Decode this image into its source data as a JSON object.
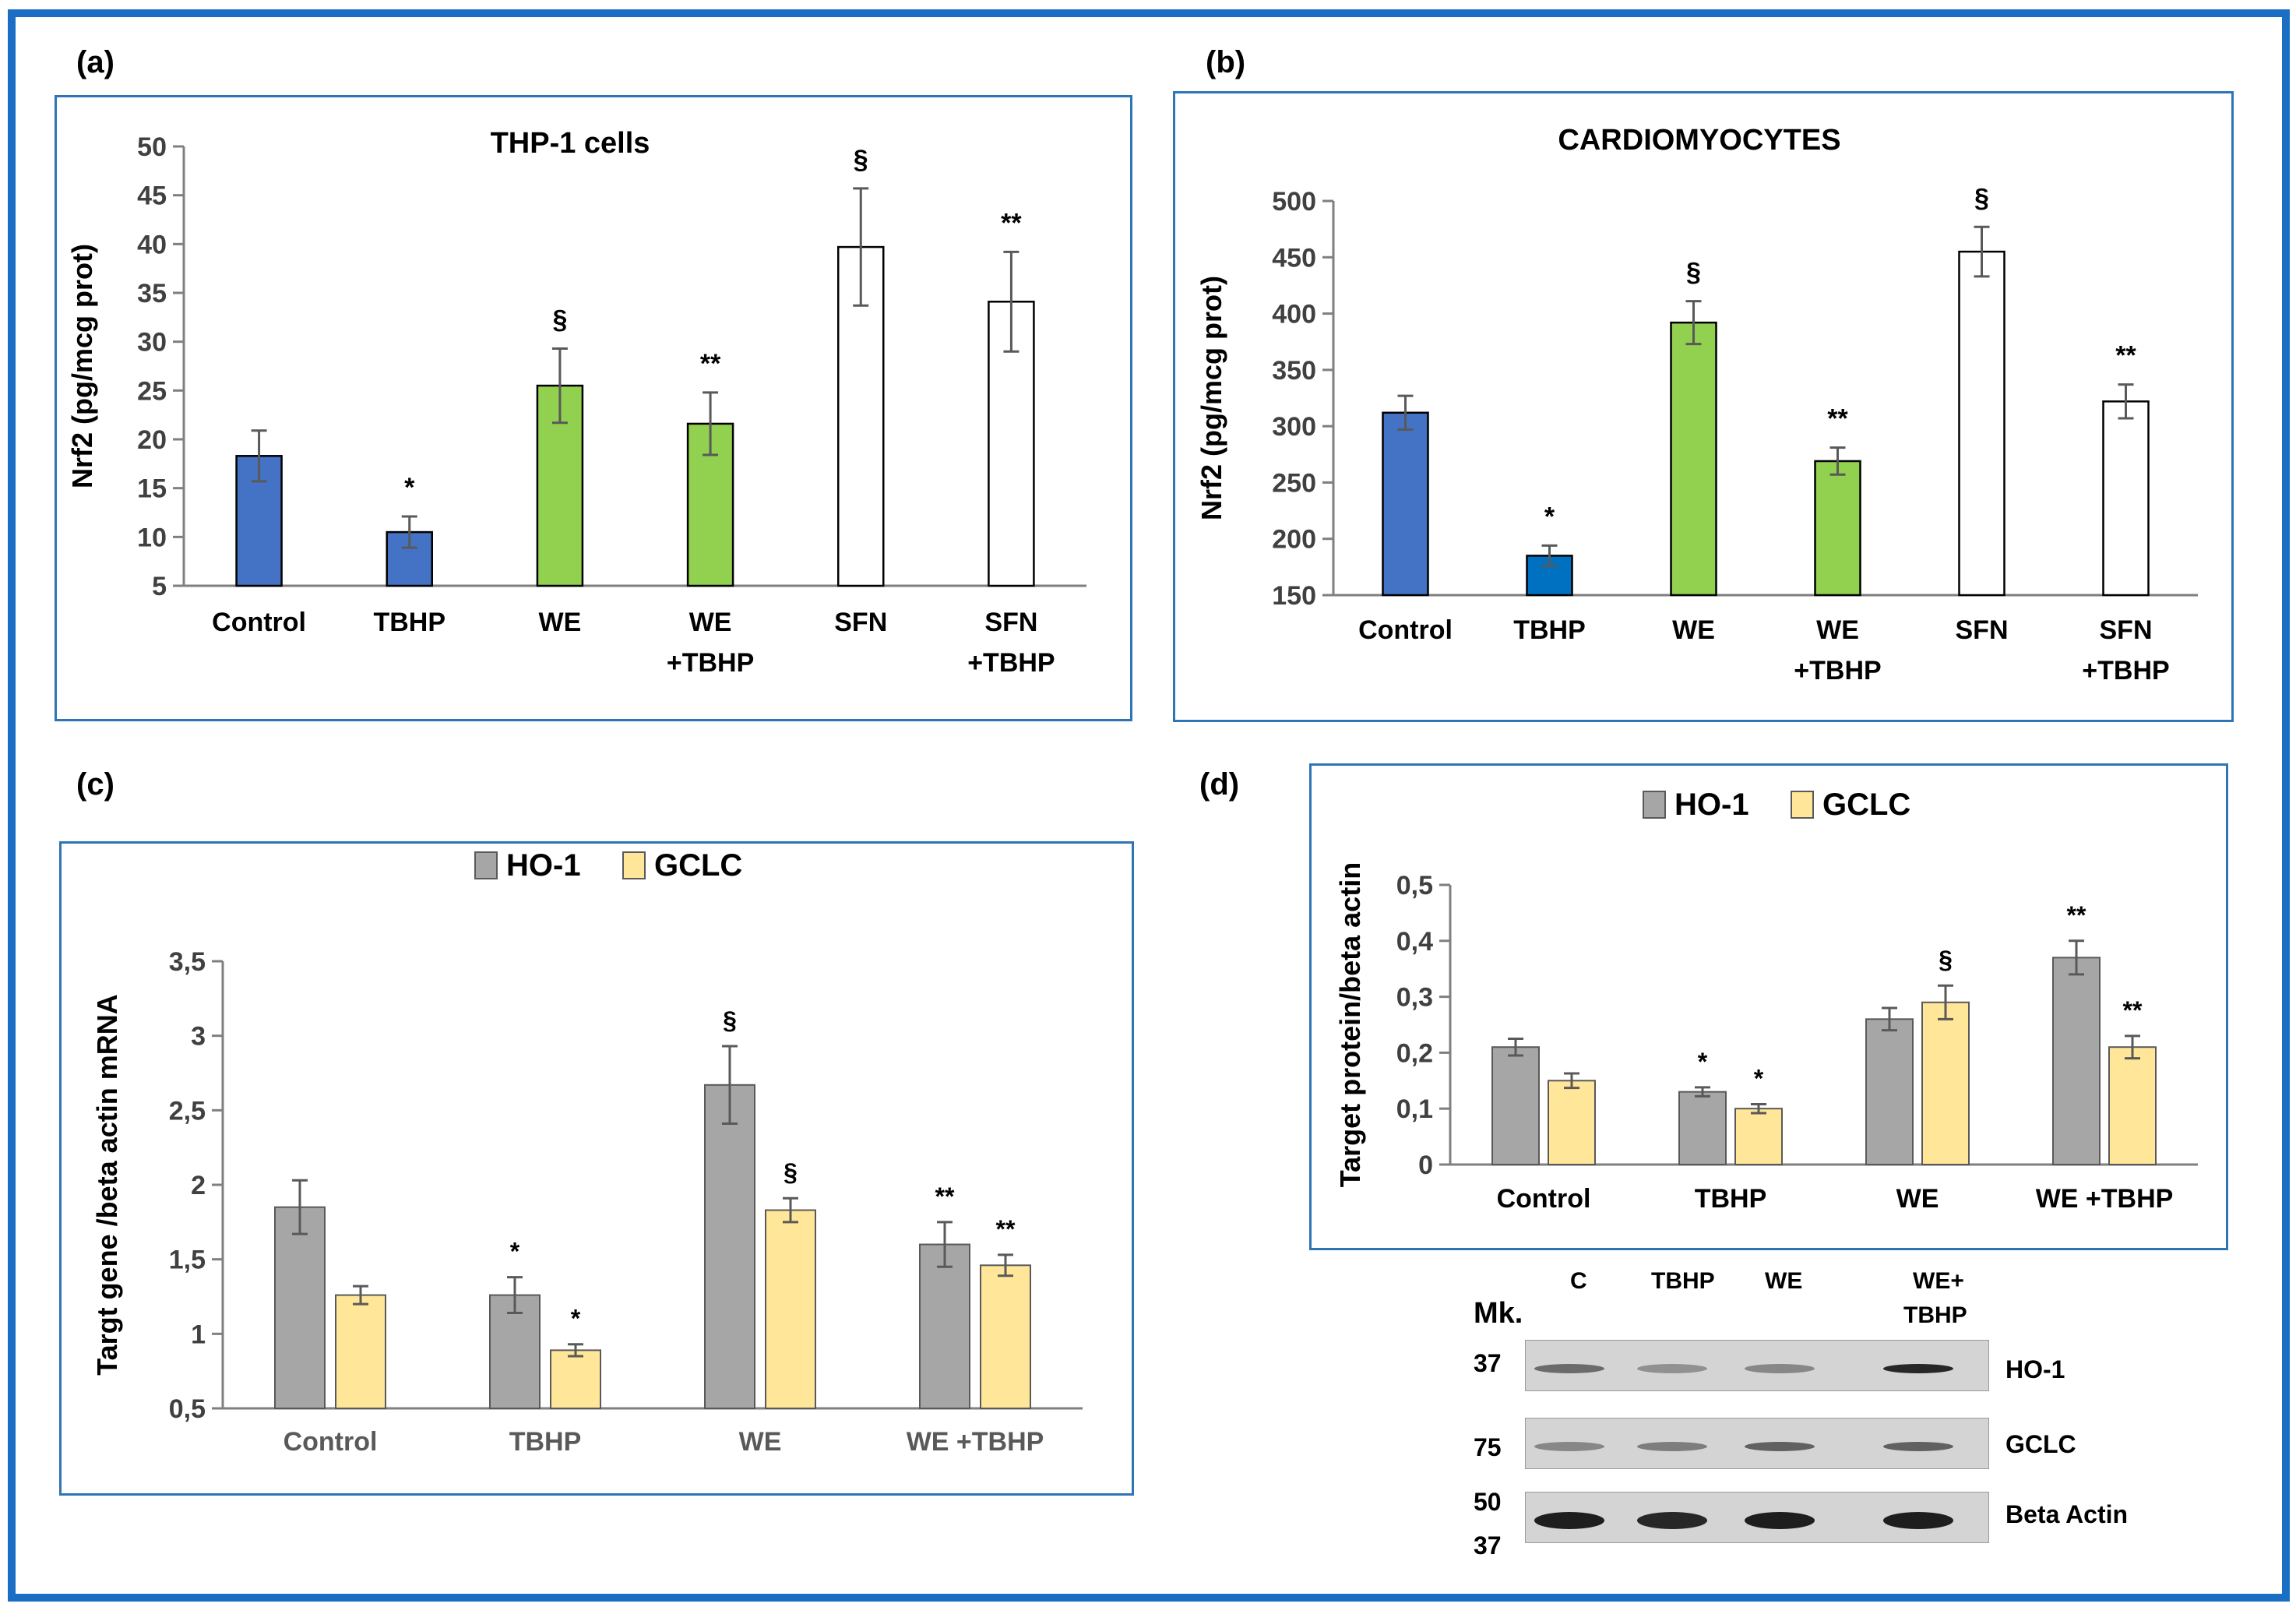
{
  "panel_labels": [
    "(a)",
    "(b)",
    "(c)",
    "(d)"
  ],
  "colors": {
    "blue": "#4472c4",
    "blue2": "#0070c0",
    "green": "#92d050",
    "white": "#ffffff",
    "gray": "#a6a6a6",
    "yellow": "#ffe699",
    "frame": "#1a6fc4",
    "box": "#2e75b6"
  },
  "chart_data": [
    {
      "id": "a",
      "type": "bar",
      "title": "THP-1 cells",
      "ylabel": "Nrf2 (pg/mcg prot)",
      "xlabel": "",
      "categories": [
        [
          "Control"
        ],
        [
          "TBHP"
        ],
        [
          "WE"
        ],
        [
          "WE",
          "+TBHP"
        ],
        [
          "SFN"
        ],
        [
          "SFN",
          "+TBHP"
        ]
      ],
      "values": [
        18.3,
        10.5,
        25.5,
        21.6,
        39.7,
        34.1
      ],
      "errors": [
        2.6,
        1.6,
        3.8,
        3.2,
        6.0,
        5.1
      ],
      "bar_colors": [
        "blue",
        "blue",
        "green",
        "green",
        "white",
        "white"
      ],
      "annotations": [
        "",
        "*",
        "§",
        "**",
        "§",
        "**"
      ],
      "yticks": [
        "50",
        "45",
        "40",
        "35",
        "30",
        "25",
        "20",
        "15",
        "10",
        "5"
      ],
      "ylim": [
        5,
        50
      ],
      "grid": false
    },
    {
      "id": "b",
      "type": "bar",
      "title": "CARDIOMYOCYTES",
      "ylabel": "Nrf2 (pg/mcg prot)",
      "xlabel": "",
      "categories": [
        [
          "Control"
        ],
        [
          "TBHP"
        ],
        [
          "WE"
        ],
        [
          "WE",
          "+TBHP"
        ],
        [
          "SFN"
        ],
        [
          "SFN",
          "+TBHP"
        ]
      ],
      "values": [
        312,
        185,
        392,
        269,
        455,
        322
      ],
      "errors": [
        15,
        9,
        19,
        12,
        22,
        15
      ],
      "bar_colors": [
        "blue",
        "blue2",
        "green",
        "green",
        "white",
        "white"
      ],
      "annotations": [
        "",
        "*",
        "§",
        "**",
        "§",
        "**"
      ],
      "yticks": [
        "500",
        "450",
        "400",
        "350",
        "300",
        "250",
        "200",
        "150"
      ],
      "ylim": [
        150,
        500
      ],
      "grid": false
    },
    {
      "id": "c",
      "type": "bar",
      "title": "",
      "ylabel": "Targt gene /beta actin mRNA",
      "xlabel": "",
      "legend": [
        "HO-1",
        "GCLC"
      ],
      "categories": [
        "Control",
        "TBHP",
        "WE",
        "WE +TBHP"
      ],
      "series": [
        {
          "name": "HO-1",
          "color": "gray",
          "values": [
            1.85,
            1.26,
            2.67,
            1.6
          ],
          "errors": [
            0.18,
            0.12,
            0.26,
            0.15
          ],
          "annotations": [
            "",
            "*",
            "§",
            "**"
          ]
        },
        {
          "name": "GCLC",
          "color": "yellow",
          "values": [
            1.26,
            0.89,
            1.83,
            1.46
          ],
          "errors": [
            0.06,
            0.04,
            0.08,
            0.07
          ],
          "annotations": [
            "",
            "*",
            "§",
            "**"
          ]
        }
      ],
      "yticks": [
        "3,5",
        "3",
        "2,5",
        "2",
        "1,5",
        "1",
        "0,5"
      ],
      "ylim": [
        0.5,
        3.5
      ],
      "grid": false
    },
    {
      "id": "d",
      "type": "bar",
      "title": "",
      "ylabel": "Target protein/beta actin",
      "xlabel": "",
      "legend": [
        "HO-1",
        "GCLC"
      ],
      "categories": [
        "Control",
        "TBHP",
        "WE",
        "WE +TBHP"
      ],
      "series": [
        {
          "name": "HO-1",
          "color": "gray",
          "values": [
            0.21,
            0.13,
            0.26,
            0.37
          ],
          "errors": [
            0.015,
            0.008,
            0.02,
            0.03
          ],
          "annotations": [
            "",
            "*",
            "",
            "**"
          ]
        },
        {
          "name": "GCLC",
          "color": "yellow",
          "values": [
            0.15,
            0.1,
            0.29,
            0.21
          ],
          "errors": [
            0.013,
            0.008,
            0.03,
            0.02
          ],
          "annotations": [
            "",
            "*",
            "§",
            "**"
          ]
        }
      ],
      "yticks": [
        "0,5",
        "0,4",
        "0,3",
        "0,2",
        "0,1",
        "0"
      ],
      "ylim": [
        0,
        0.5
      ],
      "grid": false
    }
  ],
  "blot": {
    "marker_title": "Mk.",
    "lanes": [
      "C",
      "TBHP",
      "WE",
      "WE+",
      "TBHP"
    ],
    "rows": [
      {
        "mw": "37",
        "label": "HO-1",
        "intensity": [
          0.55,
          0.35,
          0.4,
          0.9
        ]
      },
      {
        "mw": "75",
        "label": "GCLC",
        "intensity": [
          0.4,
          0.45,
          0.6,
          0.6
        ]
      },
      {
        "mw": "50",
        "mw2": "37",
        "label": "Beta Actin",
        "intensity": [
          0.95,
          0.9,
          0.95,
          0.95
        ]
      }
    ]
  }
}
